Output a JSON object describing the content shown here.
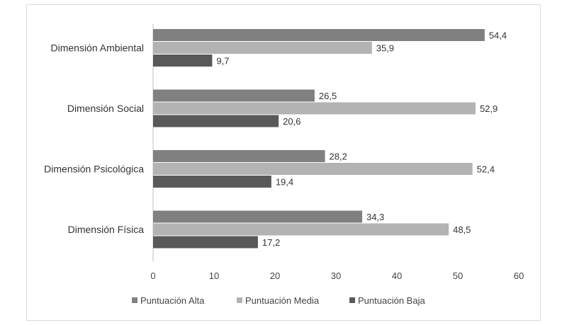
{
  "chart_data": {
    "type": "bar",
    "orientation": "horizontal",
    "categories": [
      "Dimensión Ambiental",
      "Dimensión Social",
      "Dimensión Psicológica",
      "Dimensión Física"
    ],
    "series": [
      {
        "name": "Puntuación Alta",
        "values": [
          54.4,
          26.5,
          28.2,
          34.3
        ],
        "labels": [
          "54,4",
          "26,5",
          "28,2",
          "34,3"
        ],
        "color": "#808080"
      },
      {
        "name": "Puntuación Media",
        "values": [
          35.9,
          52.9,
          52.4,
          48.5
        ],
        "labels": [
          "35,9",
          "52,9",
          "52,4",
          "48,5"
        ],
        "color": "#b3b3b3"
      },
      {
        "name": "Puntuación Baja",
        "values": [
          9.7,
          20.6,
          19.4,
          17.2
        ],
        "labels": [
          "9,7",
          "20,6",
          "19,4",
          "17,2"
        ],
        "color": "#595959"
      }
    ],
    "xlim": [
      0,
      60
    ],
    "xticks": [
      "0",
      "10",
      "20",
      "30",
      "40",
      "50",
      "60"
    ],
    "grid": false,
    "legend": "bottom",
    "title": "",
    "xlabel": "",
    "ylabel": ""
  }
}
